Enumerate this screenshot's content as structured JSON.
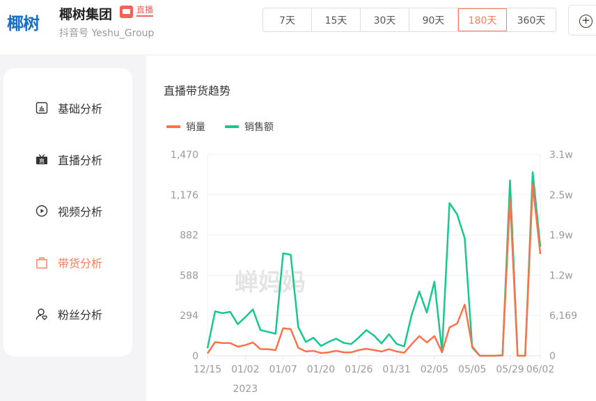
{
  "header": {
    "logo_text": "椰树",
    "account_name": "椰树集团",
    "live_badge": "直播",
    "handle": "抖音号 Yeshu_Group",
    "ranges": [
      "7天",
      "15天",
      "30天",
      "90天",
      "180天",
      "360天"
    ],
    "active_range": "180天",
    "add_icon": "plus-circle-icon"
  },
  "sidebar": {
    "items": [
      {
        "label": "基础分析",
        "icon": "bar-chart-icon"
      },
      {
        "label": "直播分析",
        "icon": "live-tv-icon"
      },
      {
        "label": "视频分析",
        "icon": "play-circle-icon"
      },
      {
        "label": "带货分析",
        "icon": "shopping-bag-icon"
      },
      {
        "label": "粉丝分析",
        "icon": "user-heart-icon"
      }
    ],
    "active": "带货分析"
  },
  "watermark": "蝉妈妈",
  "chart_data": {
    "type": "line",
    "title": "直播带货趋势",
    "legend_position": "top-left",
    "grid": true,
    "x_tick_labels": [
      {
        "index": 0,
        "label": "12/15"
      },
      {
        "index": 5,
        "label": "01/02"
      },
      {
        "index": 10,
        "label": "01/07"
      },
      {
        "index": 15,
        "label": "01/20"
      },
      {
        "index": 20,
        "label": "01/26"
      },
      {
        "index": 25,
        "label": "01/31"
      },
      {
        "index": 30,
        "label": "02/05"
      },
      {
        "index": 35,
        "label": "05/05"
      },
      {
        "index": 40,
        "label": "05/29"
      },
      {
        "index": 44,
        "label": "06/02"
      }
    ],
    "x_sublabel": "2023",
    "y_left": {
      "ylim": [
        0,
        1470
      ],
      "ticks": [
        "0",
        "294",
        "588",
        "882",
        "1,176",
        "1,470"
      ]
    },
    "y_right": {
      "ylim": [
        0,
        30845
      ],
      "ticks": [
        "0",
        "6,169",
        "1.2w",
        "1.9w",
        "2.5w",
        "3.1w"
      ]
    },
    "series": [
      {
        "name": "销量",
        "axis": "left",
        "color": "#ff7148",
        "values": [
          17,
          99,
          93,
          93,
          66,
          78,
          97,
          49,
          48,
          41,
          201,
          195,
          58,
          31,
          36,
          20,
          25,
          36,
          25,
          25,
          41,
          51,
          41,
          31,
          48,
          31,
          22,
          85,
          144,
          97,
          144,
          25,
          207,
          235,
          374,
          68,
          0,
          0,
          0,
          2,
          1150,
          0,
          0,
          1250,
          743
        ]
      },
      {
        "name": "销售额",
        "axis": "right",
        "color": "#16c88c",
        "values": [
          1147,
          6810,
          6523,
          6738,
          4838,
          5914,
          7096,
          3942,
          3656,
          3369,
          15698,
          15483,
          4372,
          2115,
          2760,
          1505,
          2115,
          2616,
          1971,
          1792,
          2796,
          3942,
          3118,
          1900,
          3297,
          1828,
          1434,
          6272,
          9856,
          6630,
          11361,
          717,
          23404,
          21683,
          18028,
          1254,
          0,
          0,
          0,
          72,
          26880,
          0,
          0,
          28134,
          16666
        ]
      }
    ]
  }
}
